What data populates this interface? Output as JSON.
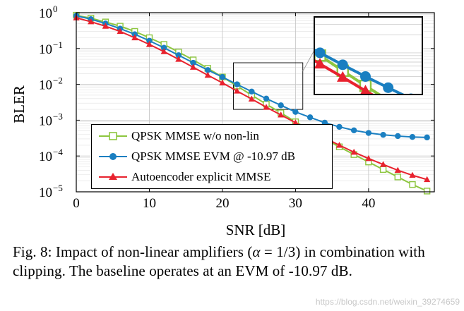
{
  "caption": {
    "prefix": "Fig. 8: Impact of non-linear amplifiers (",
    "alpha": "α",
    "equals": " = 1/3",
    "suffix": ") in combination with clipping. The baseline operates at an EVM of -10.97 dB."
  },
  "watermark": "https://blog.csdn.net/weixin_39274659",
  "colors": {
    "green": "#8dc63f",
    "blue": "#1a7fc1",
    "red": "#e8222e",
    "grid": "#c8c8c8"
  },
  "chart_data": {
    "type": "line",
    "title": "",
    "xlabel": "SNR [dB]",
    "ylabel": "BLER",
    "xlim": [
      0,
      49
    ],
    "ylim": [
      1e-05,
      1
    ],
    "yscale": "log",
    "grid": true,
    "xticks": [
      0,
      10,
      20,
      30,
      40
    ],
    "ytick_labels": [
      {
        "value": 1,
        "mantissa": "10",
        "exp": "0"
      },
      {
        "value": 0.1,
        "mantissa": "10",
        "exp": "−1"
      },
      {
        "value": 0.01,
        "mantissa": "10",
        "exp": "−2"
      },
      {
        "value": 0.001,
        "mantissa": "10",
        "exp": "−3"
      },
      {
        "value": 0.0001,
        "mantissa": "10",
        "exp": "−4"
      },
      {
        "value": 1e-05,
        "mantissa": "10",
        "exp": "−5"
      }
    ],
    "legend_position": "lower-left",
    "x": [
      0,
      2,
      4,
      6,
      8,
      10,
      12,
      14,
      16,
      18,
      20,
      22,
      24,
      26,
      28,
      30,
      32,
      34,
      36,
      38,
      40,
      42,
      44,
      46,
      48
    ],
    "series": [
      {
        "name": "QPSK MMSE w/o non-lin",
        "color": "#8dc63f",
        "marker": "square",
        "values": [
          0.85,
          0.7,
          0.55,
          0.42,
          0.3,
          0.2,
          0.13,
          0.08,
          0.048,
          0.028,
          0.016,
          0.009,
          0.005,
          0.0028,
          0.0016,
          0.0009,
          0.00052,
          0.0003,
          0.00018,
          0.00011,
          6.8e-05,
          4.2e-05,
          2.6e-05,
          1.6e-05,
          1.05e-05
        ]
      },
      {
        "name": "QPSK MMSE EVM @ -10.97 dB",
        "color": "#1a7fc1",
        "marker": "circle",
        "values": [
          0.82,
          0.66,
          0.5,
          0.36,
          0.25,
          0.165,
          0.105,
          0.065,
          0.04,
          0.025,
          0.016,
          0.01,
          0.0063,
          0.004,
          0.0026,
          0.0017,
          0.0012,
          0.00085,
          0.00065,
          0.00052,
          0.00044,
          0.00039,
          0.00036,
          0.00034,
          0.00033
        ]
      },
      {
        "name": "Autoencoder explicit MMSE",
        "color": "#e8222e",
        "marker": "triangle",
        "values": [
          0.72,
          0.56,
          0.42,
          0.3,
          0.2,
          0.13,
          0.082,
          0.05,
          0.03,
          0.018,
          0.011,
          0.0065,
          0.0039,
          0.0023,
          0.0014,
          0.00085,
          0.00052,
          0.00032,
          0.0002,
          0.000128,
          8.5e-05,
          5.8e-05,
          4e-05,
          2.9e-05,
          2.2e-05
        ]
      }
    ],
    "zoom_box": {
      "x_range": [
        21.5,
        31
      ],
      "y_range": [
        0.002,
        0.04
      ]
    }
  }
}
